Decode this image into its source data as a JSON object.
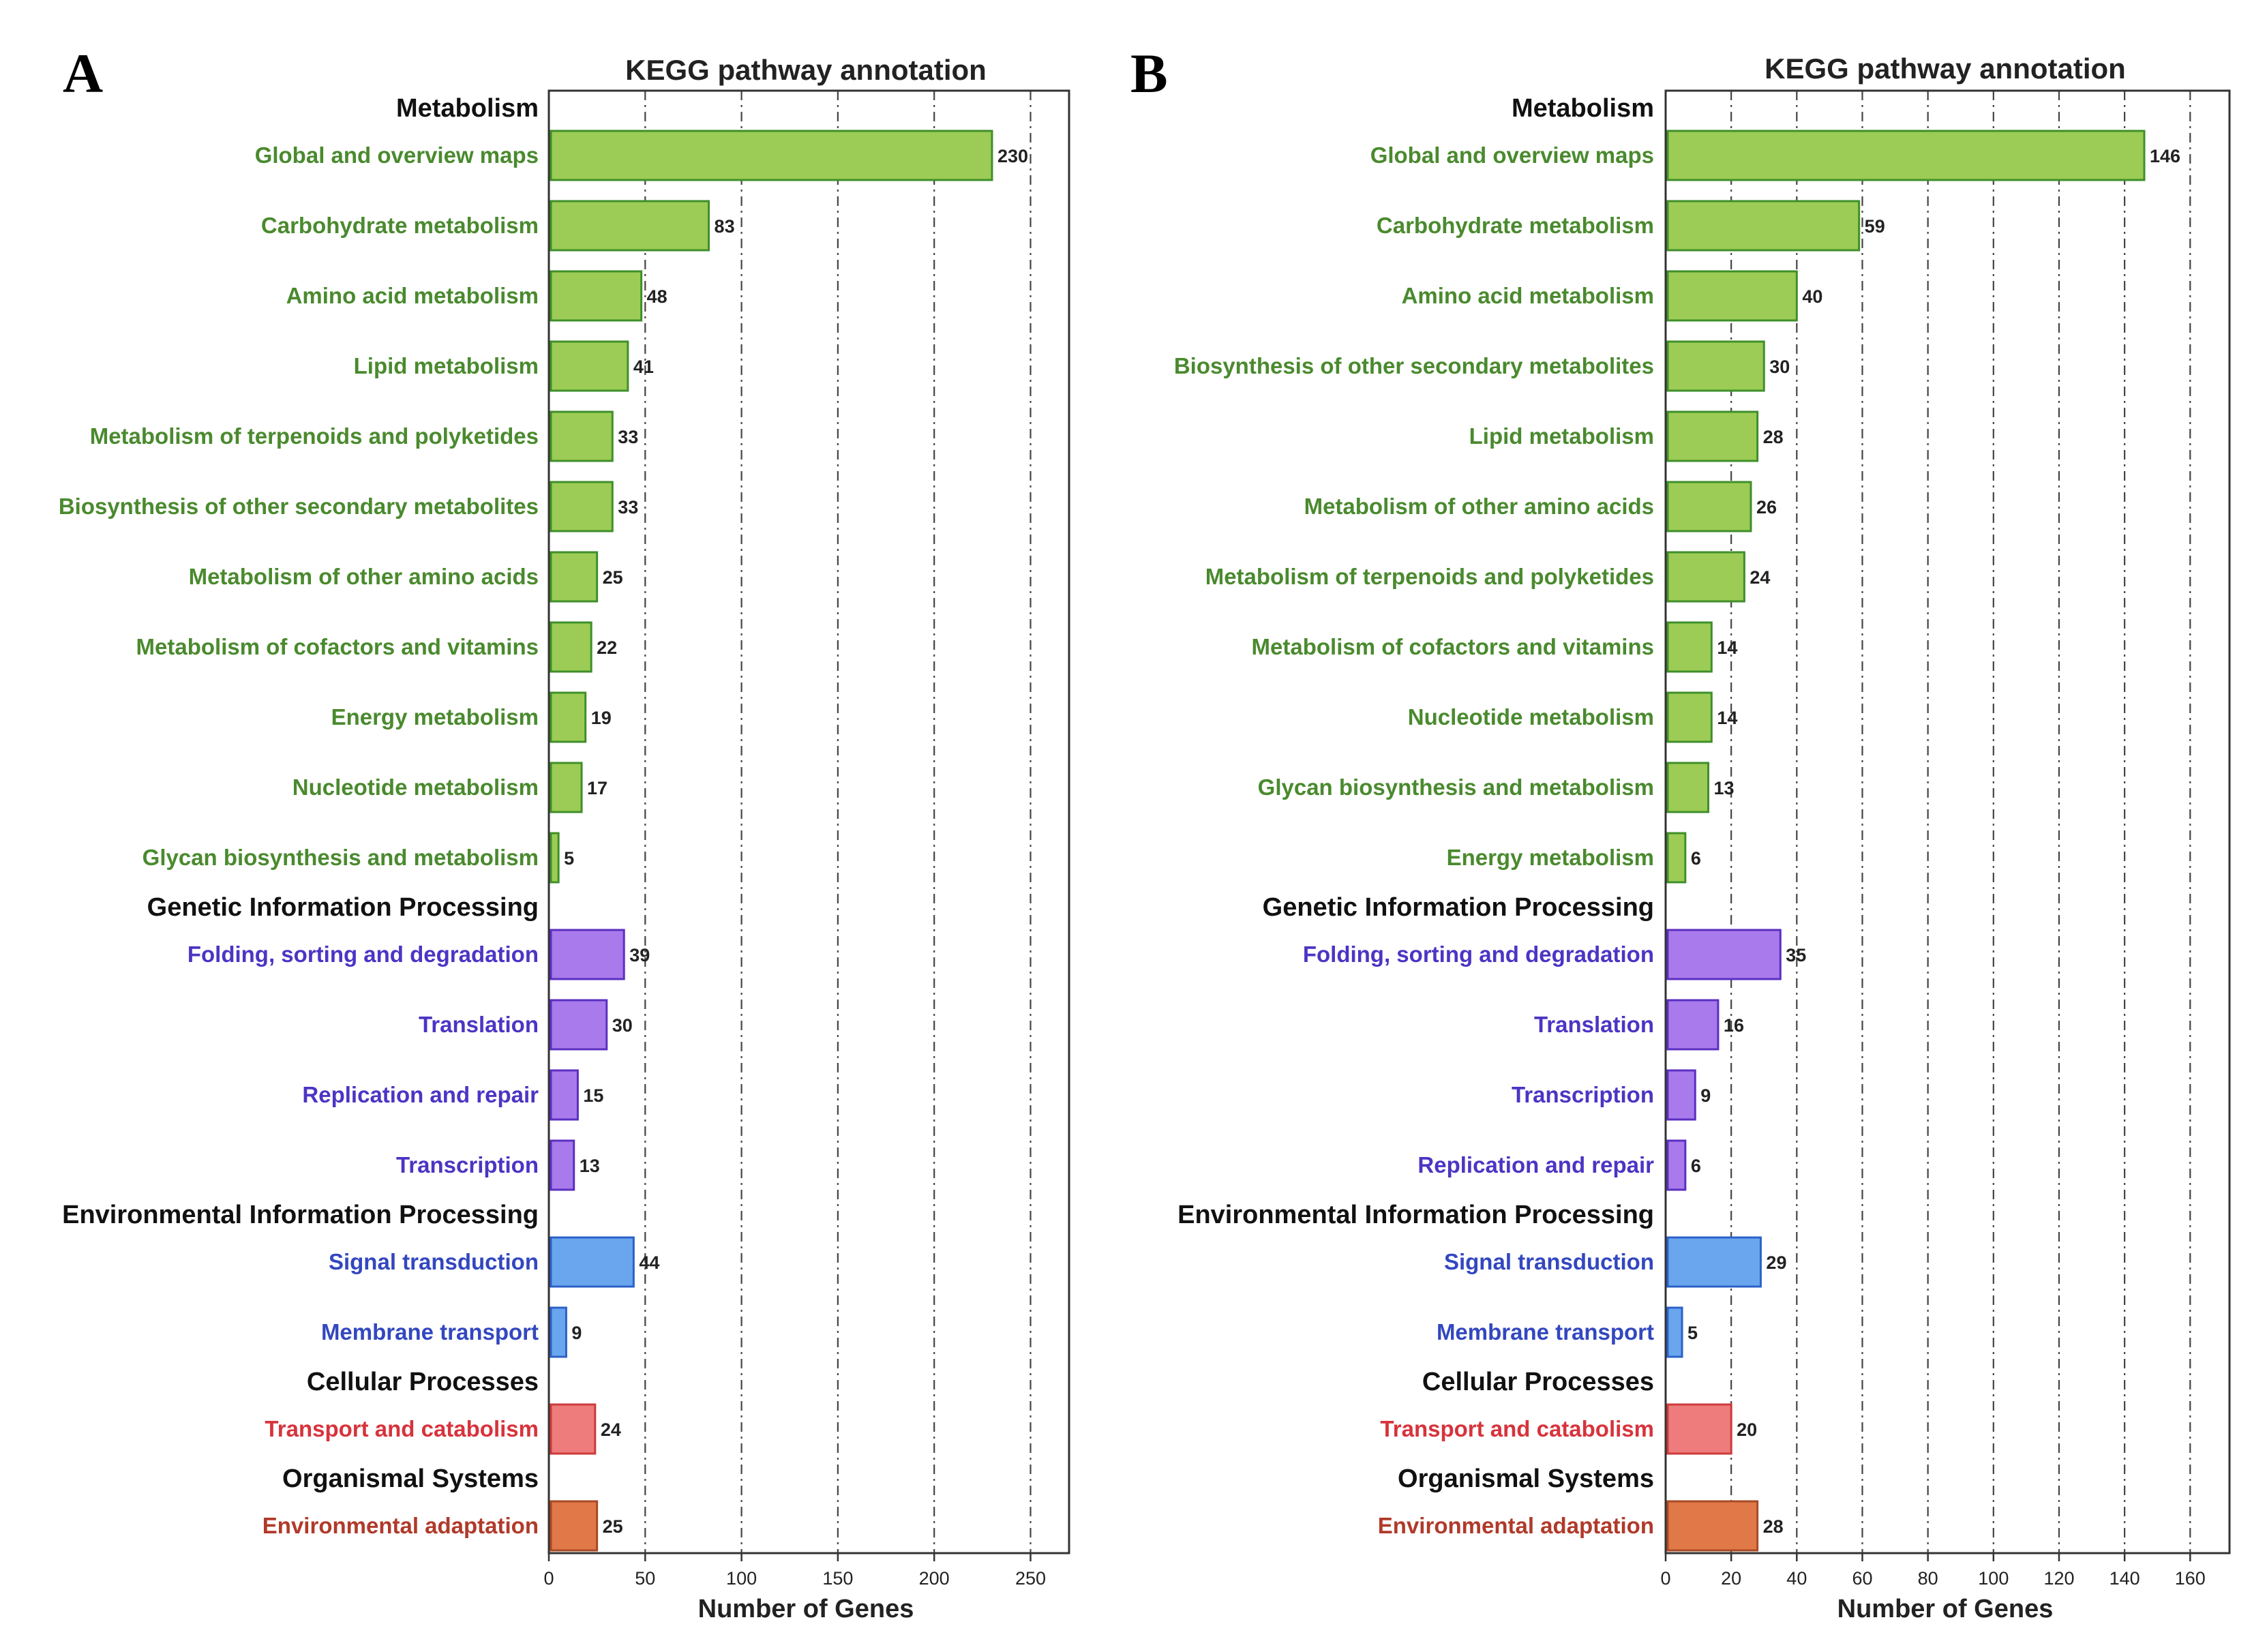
{
  "colors": {
    "Metabolism": {
      "fill": "#9ccc55",
      "stroke": "#3f8f2a",
      "text": "#4a8a2e"
    },
    "Genetic Information Processing": {
      "fill": "#a97aeb",
      "stroke": "#5b2fc2",
      "text": "#4b35c4"
    },
    "Environmental Information Processing": {
      "fill": "#6aa6ee",
      "stroke": "#2b61c9",
      "text": "#3347bf"
    },
    "Cellular Processes": {
      "fill": "#ee7c7c",
      "stroke": "#cc3a3a",
      "text": "#d7333c"
    },
    "Organismal Systems": {
      "fill": "#e07848",
      "stroke": "#a94a24",
      "text": "#b03a2a"
    }
  },
  "chart_data": [
    {
      "panel": "A",
      "type": "bar",
      "orientation": "horizontal",
      "title": "KEGG pathway annotation",
      "xlabel": "Number of Genes",
      "xlim": [
        0,
        270
      ],
      "xticks": [
        0,
        50,
        100,
        150,
        200,
        250
      ],
      "grid": "vertical dash-dot",
      "groups": [
        {
          "name": "Metabolism",
          "categories": [
            {
              "label": "Global and overview maps",
              "value": 230
            },
            {
              "label": "Carbohydrate metabolism",
              "value": 83
            },
            {
              "label": "Amino acid metabolism",
              "value": 48
            },
            {
              "label": "Lipid metabolism",
              "value": 41
            },
            {
              "label": "Metabolism of terpenoids and polyketides",
              "value": 33
            },
            {
              "label": "Biosynthesis of other secondary metabolites",
              "value": 33
            },
            {
              "label": "Metabolism of other amino acids",
              "value": 25
            },
            {
              "label": "Metabolism of cofactors and vitamins",
              "value": 22
            },
            {
              "label": "Energy metabolism",
              "value": 19
            },
            {
              "label": "Nucleotide metabolism",
              "value": 17
            },
            {
              "label": "Glycan biosynthesis and metabolism",
              "value": 5
            }
          ]
        },
        {
          "name": "Genetic Information Processing",
          "categories": [
            {
              "label": "Folding, sorting and degradation",
              "value": 39
            },
            {
              "label": "Translation",
              "value": 30
            },
            {
              "label": "Replication and repair",
              "value": 15
            },
            {
              "label": "Transcription",
              "value": 13
            }
          ]
        },
        {
          "name": "Environmental Information Processing",
          "categories": [
            {
              "label": "Signal transduction",
              "value": 44
            },
            {
              "label": "Membrane transport",
              "value": 9
            }
          ]
        },
        {
          "name": "Cellular Processes",
          "categories": [
            {
              "label": "Transport and catabolism",
              "value": 24
            }
          ]
        },
        {
          "name": "Organismal Systems",
          "categories": [
            {
              "label": "Environmental adaptation",
              "value": 25
            }
          ]
        }
      ]
    },
    {
      "panel": "B",
      "type": "bar",
      "orientation": "horizontal",
      "title": "KEGG pathway annotation",
      "xlabel": "Number of Genes",
      "xlim": [
        0,
        172
      ],
      "xticks": [
        0,
        20,
        40,
        60,
        80,
        100,
        120,
        140,
        160
      ],
      "grid": "vertical dash-dot",
      "groups": [
        {
          "name": "Metabolism",
          "categories": [
            {
              "label": "Global and overview maps",
              "value": 146
            },
            {
              "label": "Carbohydrate metabolism",
              "value": 59
            },
            {
              "label": "Amino acid metabolism",
              "value": 40
            },
            {
              "label": "Biosynthesis of other secondary metabolites",
              "value": 30
            },
            {
              "label": "Lipid metabolism",
              "value": 28
            },
            {
              "label": "Metabolism of other amino acids",
              "value": 26
            },
            {
              "label": "Metabolism of terpenoids and polyketides",
              "value": 24
            },
            {
              "label": "Metabolism of cofactors and vitamins",
              "value": 14
            },
            {
              "label": "Nucleotide metabolism",
              "value": 14
            },
            {
              "label": "Glycan biosynthesis and metabolism",
              "value": 13
            },
            {
              "label": "Energy metabolism",
              "value": 6
            }
          ]
        },
        {
          "name": "Genetic Information Processing",
          "categories": [
            {
              "label": "Folding, sorting and degradation",
              "value": 35
            },
            {
              "label": "Translation",
              "value": 16
            },
            {
              "label": "Transcription",
              "value": 9
            },
            {
              "label": "Replication and repair",
              "value": 6
            }
          ]
        },
        {
          "name": "Environmental Information Processing",
          "categories": [
            {
              "label": "Signal transduction",
              "value": 29
            },
            {
              "label": "Membrane transport",
              "value": 5
            }
          ]
        },
        {
          "name": "Cellular Processes",
          "categories": [
            {
              "label": "Transport and catabolism",
              "value": 20
            }
          ]
        },
        {
          "name": "Organismal Systems",
          "categories": [
            {
              "label": "Environmental adaptation",
              "value": 28
            }
          ]
        }
      ]
    }
  ]
}
